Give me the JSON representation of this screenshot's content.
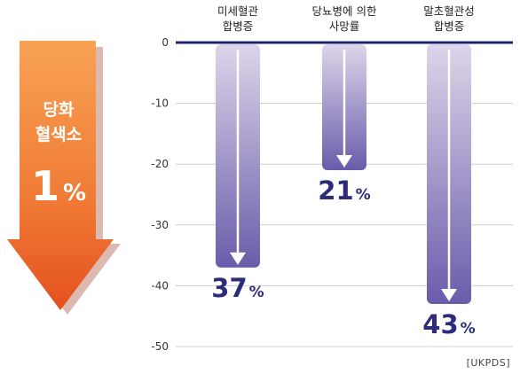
{
  "side_arrow": {
    "line1": "당화",
    "line2": "혈색소",
    "number": "1",
    "unit": "%"
  },
  "source": "[UKPDS]",
  "chart_data": {
    "type": "bar",
    "categories": [
      [
        "미세혈관",
        "합병증"
      ],
      [
        "당뇨병에 의한",
        "사망률"
      ],
      [
        "말초혈관성",
        "합병증"
      ]
    ],
    "values": [
      -37,
      -21,
      -43
    ],
    "value_labels": [
      "37",
      "21",
      "43"
    ],
    "value_unit": "%",
    "ylim": [
      -50,
      0
    ],
    "yticks": [
      0,
      -10,
      -20,
      -30,
      -40,
      -50
    ],
    "grid": true,
    "colors": {
      "bar_top": "#ddd5ea",
      "bar_bottom": "#6a5caa",
      "value_text": "#2e2b7a",
      "axis": "#23206b",
      "arrow_top": "#f7a255",
      "arrow_bottom": "#e8531f"
    }
  }
}
